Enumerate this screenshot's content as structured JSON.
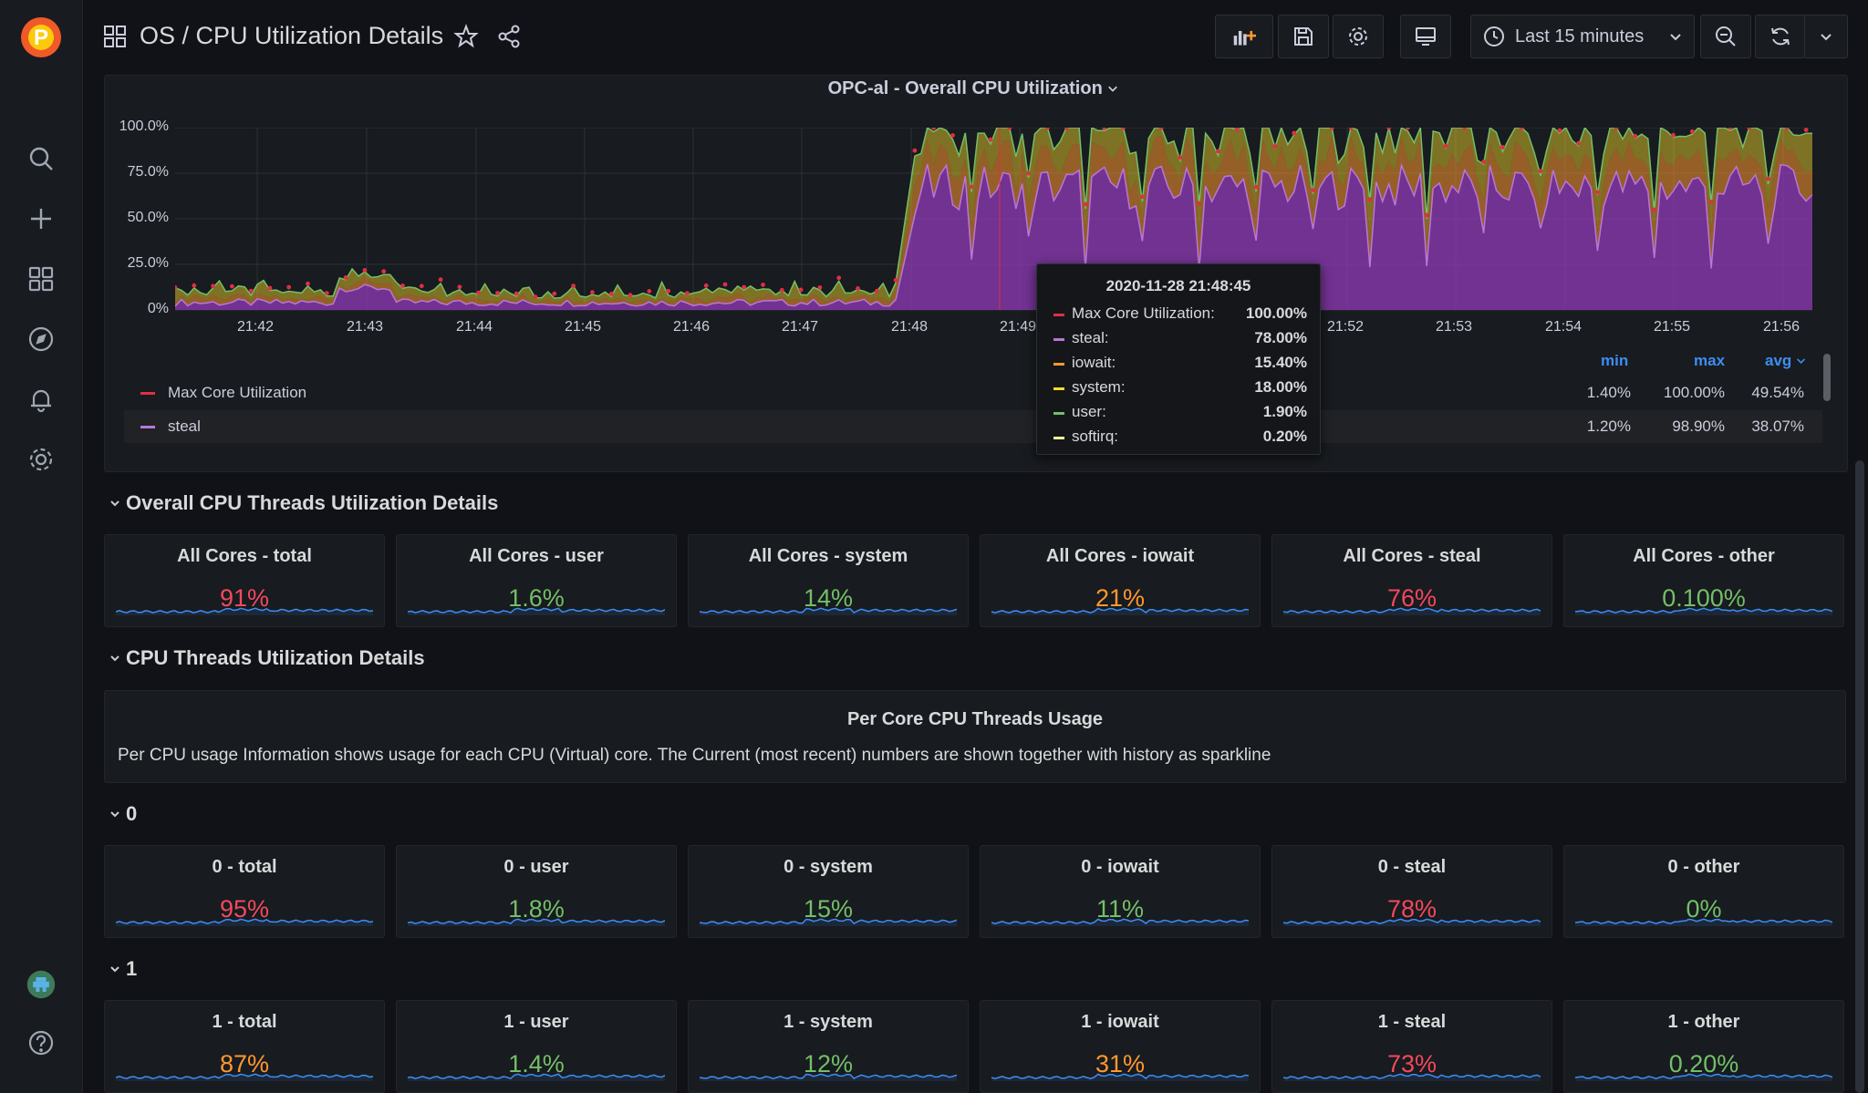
{
  "header": {
    "title": "OS / CPU Utilization Details",
    "time_range": "Last 15 minutes"
  },
  "colors": {
    "red": "#f2495c",
    "orange": "#ff9830",
    "green": "#73bf69",
    "blue": "#3d8df5",
    "purple": "#8f3bb8",
    "yellow": "#fade2a"
  },
  "chart_data": {
    "type": "area",
    "title": "OPC-al - Overall CPU Utilization",
    "y_ticks": [
      "100.0%",
      "75.0%",
      "50.0%",
      "25.0%",
      "0%"
    ],
    "x_ticks": [
      "21:42",
      "21:43",
      "21:44",
      "21:45",
      "21:46",
      "21:47",
      "21:48",
      "21:49",
      "21:52",
      "21:53",
      "21:54",
      "21:55",
      "21:56"
    ],
    "ylim": [
      0,
      100
    ],
    "legend_header": {
      "min": "min",
      "max": "max",
      "avg": "avg"
    },
    "series": [
      {
        "name": "Max Core Utilization",
        "color": "#e02f44",
        "min": "1.40%",
        "max": "100.00%",
        "avg": "49.54%"
      },
      {
        "name": "steal",
        "color": "#b877d9",
        "min": "1.20%",
        "max": "98.90%",
        "avg": "38.07%"
      }
    ],
    "tooltip": {
      "time": "2020-11-28 21:48:45",
      "rows": [
        {
          "name": "Max Core Utilization:",
          "value": "100.00%",
          "color": "#e02f44"
        },
        {
          "name": "steal:",
          "value": "78.00%",
          "color": "#b877d9"
        },
        {
          "name": "iowait:",
          "value": "15.40%",
          "color": "#ff9830"
        },
        {
          "name": "system:",
          "value": "18.00%",
          "color": "#fade2a"
        },
        {
          "name": "user:",
          "value": "1.90%",
          "color": "#73bf69"
        },
        {
          "name": "softirq:",
          "value": "0.20%",
          "color": "#fff899"
        }
      ]
    }
  },
  "sections": {
    "overall": "Overall CPU Threads Utilization Details",
    "threads": "CPU Threads Utilization Details",
    "core0": "0",
    "core1": "1"
  },
  "overall_stats": [
    {
      "title": "All Cores - total",
      "value": "91%",
      "color": "#f2495c"
    },
    {
      "title": "All Cores - user",
      "value": "1.6%",
      "color": "#73bf69"
    },
    {
      "title": "All Cores - system",
      "value": "14%",
      "color": "#73bf69"
    },
    {
      "title": "All Cores - iowait",
      "value": "21%",
      "color": "#ff9830"
    },
    {
      "title": "All Cores - steal",
      "value": "76%",
      "color": "#f2495c"
    },
    {
      "title": "All Cores - other",
      "value": "0.100%",
      "color": "#73bf69"
    }
  ],
  "text_panel": {
    "title": "Per Core CPU Threads Usage",
    "body": "Per CPU usage Information shows usage for each CPU (Virtual) core. The Current (most recent) numbers are shown together with history as sparkline"
  },
  "core0_stats": [
    {
      "title": "0 - total",
      "value": "95%",
      "color": "#f2495c"
    },
    {
      "title": "0 - user",
      "value": "1.8%",
      "color": "#73bf69"
    },
    {
      "title": "0 - system",
      "value": "15%",
      "color": "#73bf69"
    },
    {
      "title": "0 - iowait",
      "value": "11%",
      "color": "#73bf69"
    },
    {
      "title": "0 - steal",
      "value": "78%",
      "color": "#f2495c"
    },
    {
      "title": "0 - other",
      "value": "0%",
      "color": "#73bf69"
    }
  ],
  "core1_stats": [
    {
      "title": "1 - total",
      "value": "87%",
      "color": "#ff9830"
    },
    {
      "title": "1 - user",
      "value": "1.4%",
      "color": "#73bf69"
    },
    {
      "title": "1 - system",
      "value": "12%",
      "color": "#73bf69"
    },
    {
      "title": "1 - iowait",
      "value": "31%",
      "color": "#ff9830"
    },
    {
      "title": "1 - steal",
      "value": "73%",
      "color": "#f2495c"
    },
    {
      "title": "1 - other",
      "value": "0.20%",
      "color": "#73bf69"
    }
  ]
}
